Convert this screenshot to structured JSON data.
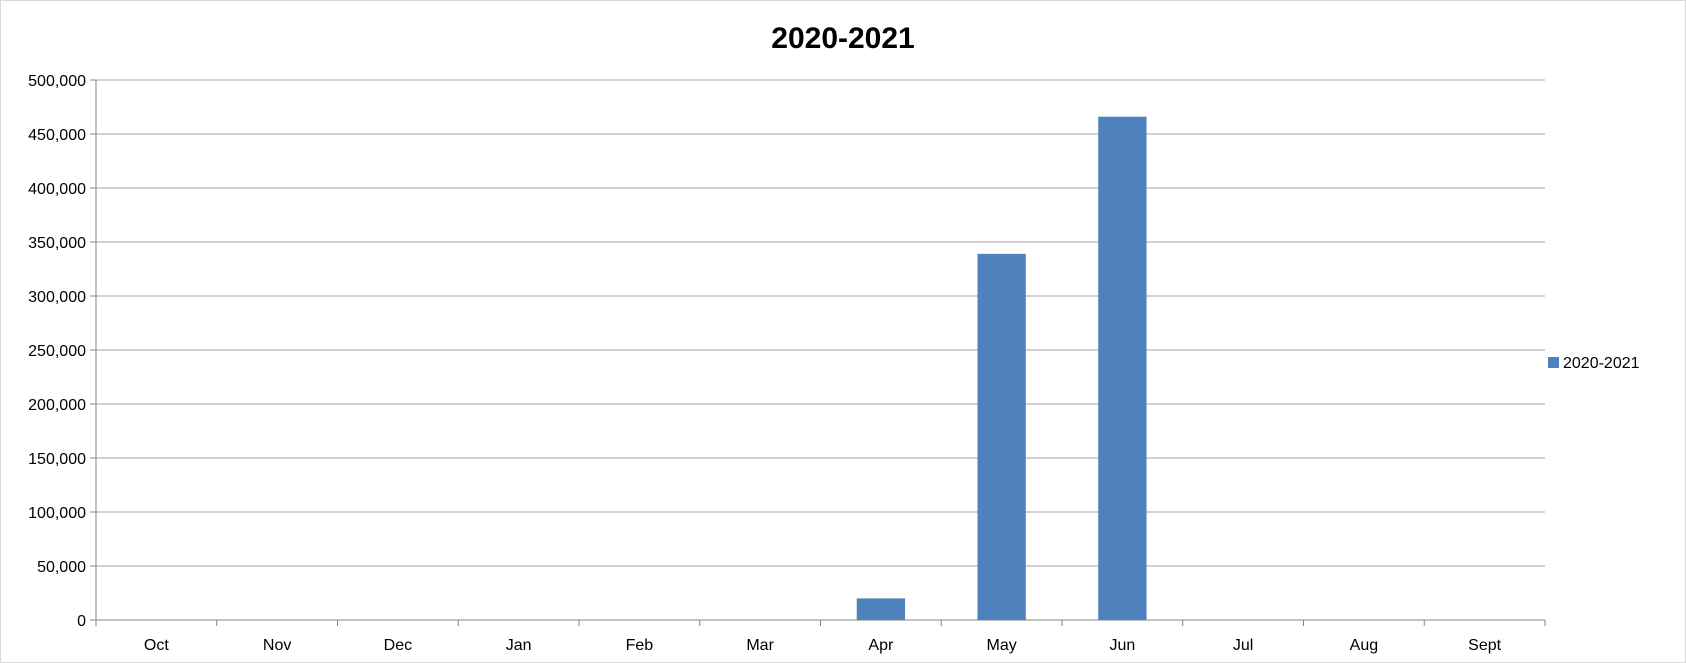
{
  "chart_data": {
    "type": "bar",
    "title": "2020-2021",
    "categories": [
      "Oct",
      "Nov",
      "Dec",
      "Jan",
      "Feb",
      "Mar",
      "Apr",
      "May",
      "Jun",
      "Jul",
      "Aug",
      "Sept"
    ],
    "series": [
      {
        "name": "2020-2021",
        "color": "#4f81bd",
        "values": [
          0,
          0,
          0,
          0,
          0,
          0,
          20000,
          339000,
          466000,
          0,
          0,
          0
        ]
      }
    ],
    "ylim": [
      0,
      500000
    ],
    "yticks": [
      0,
      50000,
      100000,
      150000,
      200000,
      250000,
      300000,
      350000,
      400000,
      450000,
      500000
    ],
    "ytick_labels": [
      "0",
      "50,000",
      "100,000",
      "150,000",
      "200,000",
      "250,000",
      "300,000",
      "350,000",
      "400,000",
      "450,000",
      "500,000"
    ],
    "grid": true,
    "legend_position": "right",
    "xlabel": "",
    "ylabel": ""
  }
}
